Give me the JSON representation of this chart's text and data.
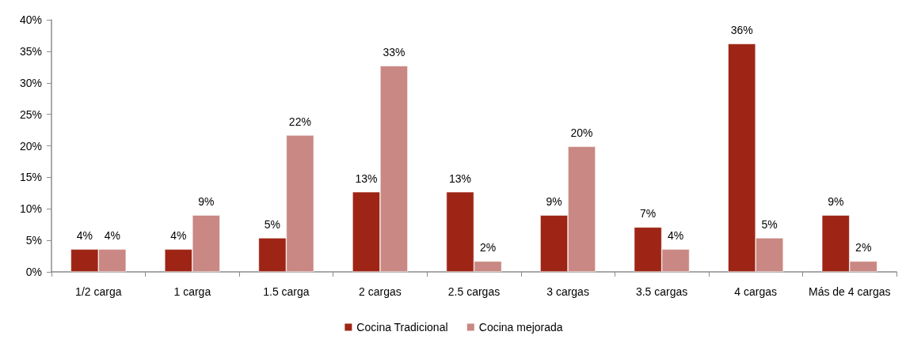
{
  "chart_data": {
    "type": "bar",
    "categories": [
      "1/2 carga",
      "1 carga",
      "1.5 carga",
      "2 cargas",
      "2.5 cargas",
      "3 cargas",
      "3.5 cargas",
      "4 cargas",
      "Más de 4 cargas"
    ],
    "series": [
      {
        "name": "Cocina Tradicional",
        "color": "#9e2515",
        "values": [
          3.6,
          3.6,
          5.4,
          12.7,
          12.7,
          9.0,
          7.1,
          36.2,
          9.0
        ],
        "value_labels": [
          "4%",
          "4%",
          "5%",
          "13%",
          "13%",
          "9%",
          "7%",
          "36%",
          "9%"
        ]
      },
      {
        "name": "Cocina mejorada",
        "color": "#c98883",
        "values": [
          3.6,
          9.0,
          21.7,
          32.7,
          1.7,
          19.9,
          3.6,
          5.4,
          1.7
        ],
        "value_labels": [
          "4%",
          "9%",
          "22%",
          "33%",
          "2%",
          "20%",
          "4%",
          "5%",
          "2%"
        ]
      }
    ],
    "ylim": [
      0,
      40
    ],
    "yticks": [
      {
        "value": 0,
        "label": "0%"
      },
      {
        "value": 5,
        "label": "5%"
      },
      {
        "value": 10,
        "label": "10%"
      },
      {
        "value": 15,
        "label": "15%"
      },
      {
        "value": 20,
        "label": "20%"
      },
      {
        "value": 25,
        "label": "25%"
      },
      {
        "value": 30,
        "label": "30%"
      },
      {
        "value": 35,
        "label": "35%"
      },
      {
        "value": 40,
        "label": "40%"
      }
    ],
    "grid": false,
    "legend": "bottom"
  }
}
